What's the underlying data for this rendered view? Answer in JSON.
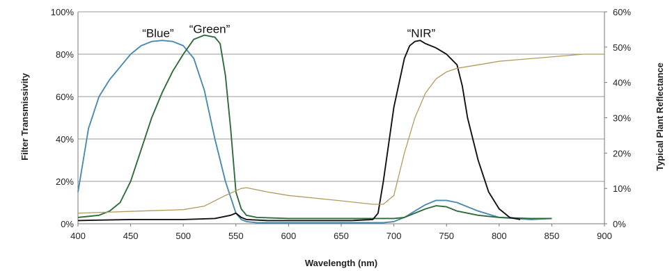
{
  "chart_data": {
    "type": "line",
    "xlabel": "Wavelength (nm)",
    "ylabel": "Filter Transmissivity",
    "y2label": "Typical Plant Reflectance",
    "xlim": [
      400,
      900
    ],
    "ylim": [
      0,
      100
    ],
    "y2lim": [
      0,
      60
    ],
    "x_ticks": [
      "400",
      "450",
      "500",
      "550",
      "600",
      "650",
      "700",
      "750",
      "800",
      "850",
      "900"
    ],
    "y_ticks": [
      "0%",
      "20%",
      "40%",
      "60%",
      "80%",
      "100%"
    ],
    "y2_ticks": [
      "0%",
      "10%",
      "20%",
      "30%",
      "40%",
      "50%",
      "60%"
    ],
    "grid": true,
    "annotations": [
      {
        "text": "“Blue”",
        "x": 476,
        "y": 90
      },
      {
        "text": "“Green”",
        "x": 525,
        "y": 92
      },
      {
        "text": "“NIR”",
        "x": 726,
        "y": 90
      }
    ],
    "series": [
      {
        "color": "#4a8ab0",
        "axis": "left",
        "x": [
          400,
          405,
          410,
          420,
          430,
          440,
          450,
          460,
          470,
          480,
          490,
          500,
          510,
          520,
          530,
          540,
          550,
          555,
          560,
          570,
          600,
          650,
          690,
          700,
          710,
          720,
          730,
          740,
          750,
          760,
          770,
          780,
          800,
          830,
          850
        ],
        "y": [
          15,
          30,
          45,
          60,
          68,
          74,
          80,
          84,
          86,
          86.5,
          86,
          84,
          78,
          63,
          40,
          20,
          5,
          2,
          1,
          0.5,
          0.5,
          0.5,
          0.5,
          1,
          3,
          6,
          9,
          11,
          11,
          10,
          8,
          6,
          3,
          2,
          2.5
        ]
      },
      {
        "color": "#2f6b3a",
        "axis": "left",
        "x": [
          400,
          420,
          430,
          440,
          450,
          460,
          470,
          480,
          490,
          500,
          510,
          520,
          530,
          535,
          540,
          545,
          550,
          555,
          560,
          570,
          600,
          650,
          700,
          710,
          720,
          730,
          740,
          750,
          760,
          780,
          800,
          830,
          850
        ],
        "y": [
          3,
          4,
          6,
          10,
          20,
          35,
          50,
          62,
          72,
          80,
          87,
          89,
          88,
          85,
          70,
          45,
          15,
          7,
          4,
          3,
          2.5,
          2.5,
          2.5,
          3,
          5,
          7,
          8.5,
          8,
          6,
          4,
          3,
          2.5,
          2.5
        ]
      },
      {
        "color": "#111111",
        "axis": "left",
        "x": [
          400,
          450,
          500,
          530,
          545,
          550,
          555,
          560,
          580,
          620,
          660,
          680,
          685,
          690,
          700,
          710,
          715,
          720,
          725,
          730,
          740,
          750,
          760,
          765,
          770,
          780,
          790,
          800,
          810,
          820
        ],
        "y": [
          1.5,
          2,
          2,
          2.5,
          4,
          5,
          3,
          2,
          1.5,
          1.5,
          1.5,
          2,
          5,
          20,
          55,
          78,
          84,
          86,
          86.5,
          85,
          83,
          80,
          75,
          65,
          50,
          30,
          15,
          7,
          3,
          2
        ]
      },
      {
        "color": "#b59a60",
        "axis": "right",
        "x": [
          400,
          450,
          480,
          500,
          520,
          540,
          555,
          560,
          580,
          600,
          650,
          680,
          690,
          700,
          710,
          720,
          730,
          740,
          750,
          760,
          770,
          780,
          800,
          820,
          840,
          860,
          880,
          900
        ],
        "y": [
          3,
          3.5,
          3.8,
          4,
          5,
          8,
          10,
          10.2,
          9,
          8,
          6.5,
          5.5,
          5.5,
          8,
          20,
          30,
          37,
          41,
          43,
          44,
          44.5,
          45,
          46,
          46.5,
          47,
          47.5,
          48,
          48
        ]
      }
    ]
  }
}
